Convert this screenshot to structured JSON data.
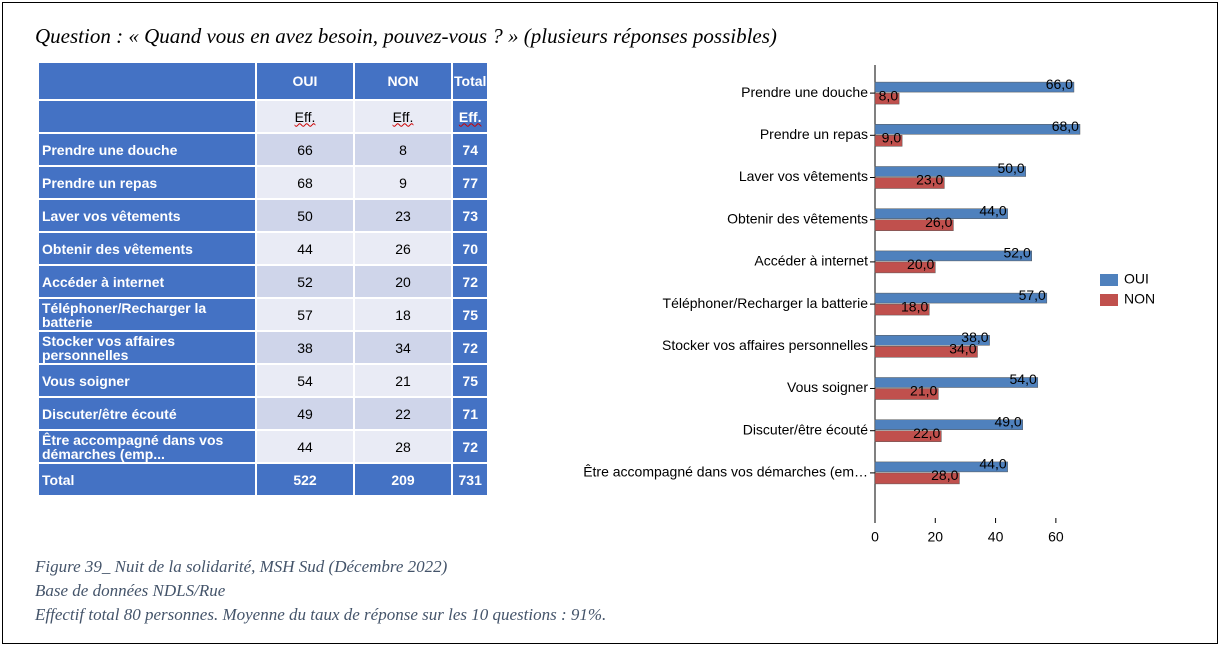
{
  "question": "Question : « Quand vous en avez besoin, pouvez-vous ? » (plusieurs réponses possibles)",
  "table": {
    "header": [
      "OUI",
      "NON",
      "Total"
    ],
    "subheader": [
      "Eff.",
      "Eff.",
      "Eff."
    ],
    "rows": [
      [
        "Prendre une douche",
        66,
        8,
        74
      ],
      [
        "Prendre un repas",
        68,
        9,
        77
      ],
      [
        "Laver vos vêtements",
        50,
        23,
        73
      ],
      [
        "Obtenir des vêtements",
        44,
        26,
        70
      ],
      [
        "Accéder à internet",
        52,
        20,
        72
      ],
      [
        "Téléphoner/Recharger la batterie",
        57,
        18,
        75
      ],
      [
        "Stocker vos affaires personnelles",
        38,
        34,
        72
      ],
      [
        "Vous soigner",
        54,
        21,
        75
      ],
      [
        "Discuter/être écouté",
        49,
        22,
        71
      ],
      [
        "Être accompagné dans vos démarches (emp...",
        44,
        28,
        72
      ],
      [
        "Total",
        522,
        209,
        731
      ]
    ]
  },
  "chart_data": {
    "type": "bar",
    "orientation": "horizontal",
    "categories": [
      "Prendre une douche",
      "Prendre un repas",
      "Laver vos vêtements",
      "Obtenir des vêtements",
      "Accéder à internet",
      "Téléphoner/Recharger la batterie",
      "Stocker vos affaires personnelles",
      "Vous soigner",
      "Discuter/être écouté",
      "Être accompagné dans vos démarches (em…"
    ],
    "series": [
      {
        "name": "OUI",
        "color": "#4f81bd",
        "values": [
          66,
          68,
          50,
          44,
          52,
          57,
          38,
          54,
          49,
          44
        ],
        "value_labels": [
          "66,0",
          "68,0",
          "50,0",
          "44,0",
          "52,0",
          "57,0",
          "38,0",
          "54,0",
          "49,0",
          "44,0"
        ]
      },
      {
        "name": "NON",
        "color": "#c0504d",
        "values": [
          8,
          9,
          23,
          26,
          20,
          18,
          34,
          21,
          22,
          28
        ],
        "value_labels": [
          "8,0",
          "9,0",
          "23,0",
          "26,0",
          "20,0",
          "18,0",
          "34,0",
          "21,0",
          "22,0",
          "28,0"
        ]
      }
    ],
    "xlim": [
      0,
      70
    ],
    "xticks": [
      0,
      20,
      40,
      60
    ],
    "legend": "right"
  },
  "caption": [
    "Figure 39_ Nuit de la solidarité, MSH Sud (Décembre 2022)",
    "Base de données NDLS/Rue",
    "Effectif total 80 personnes. Moyenne du taux de réponse sur les 10 questions : 91%."
  ]
}
